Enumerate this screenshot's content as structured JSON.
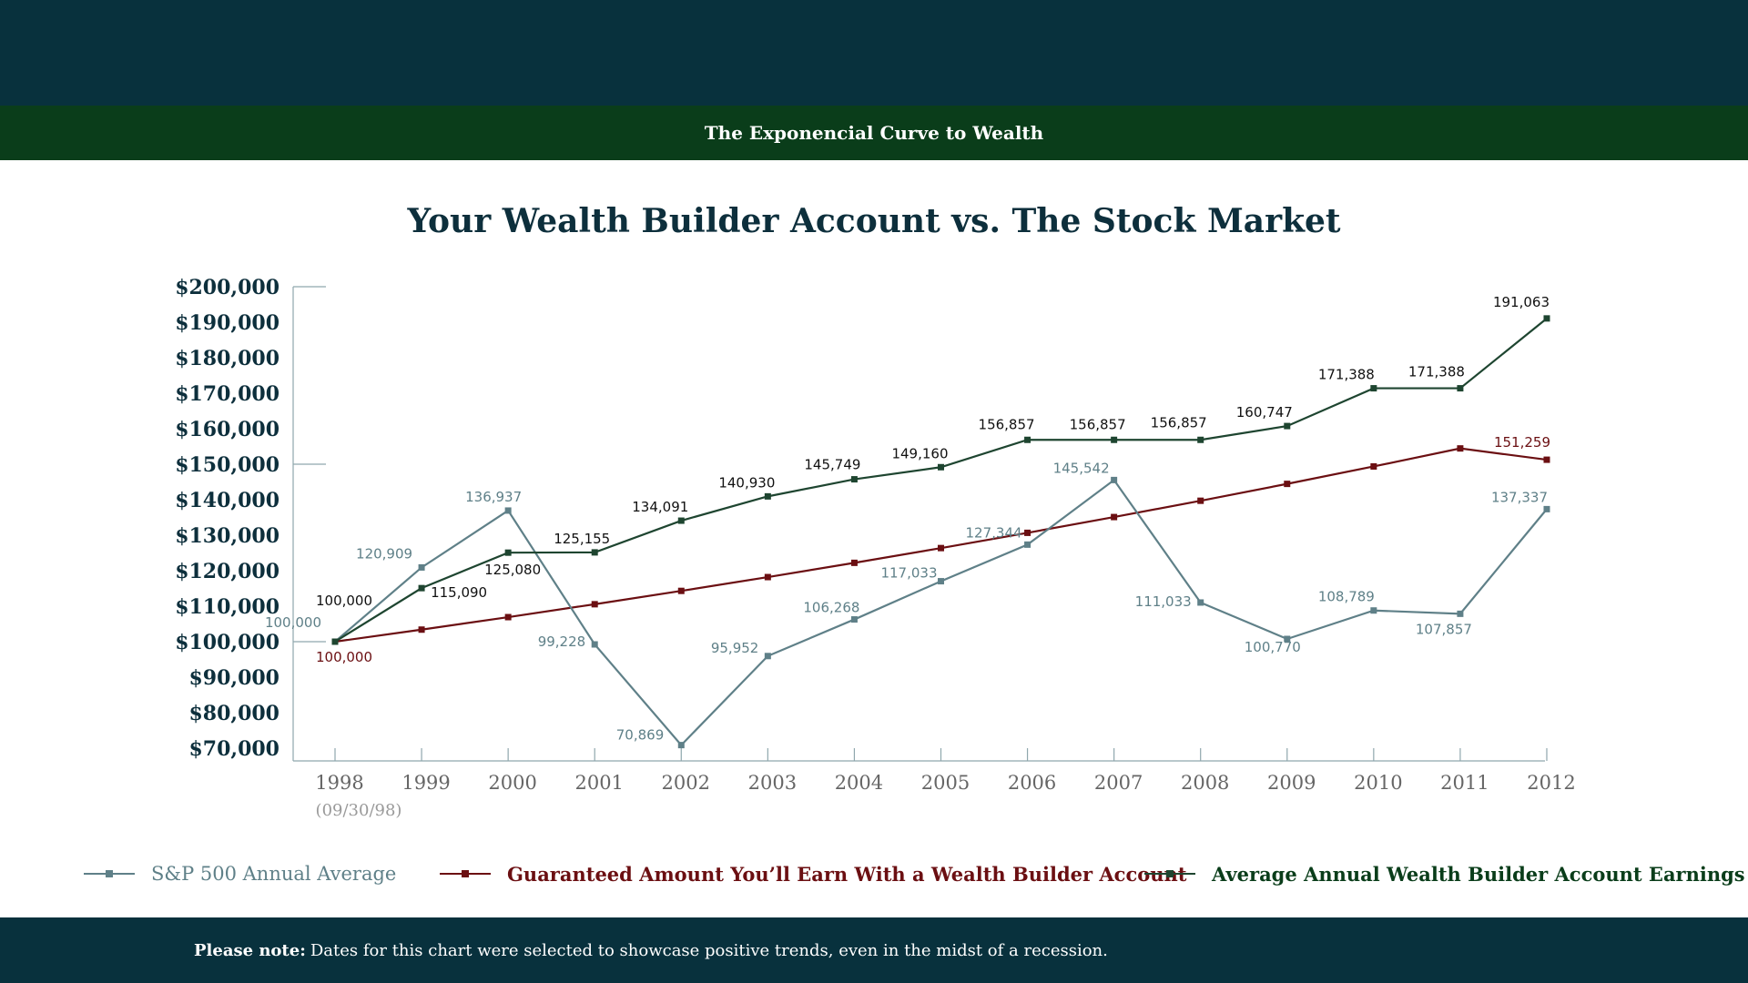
{
  "header": {
    "subtitle": "The Exponencial Curve to Wealth"
  },
  "chart_data": {
    "type": "line",
    "title": "Your Wealth Builder Account vs. The Stock Market",
    "xlabel": "",
    "ylabel": "",
    "categories": [
      "1998",
      "1999",
      "2000",
      "2001",
      "2002",
      "2003",
      "2004",
      "2005",
      "2006",
      "2007",
      "2008",
      "2009",
      "2010",
      "2011",
      "2012"
    ],
    "first_category_note": "(09/30/98)",
    "ylim": [
      70000,
      200000
    ],
    "y_ticks": [
      "$200,000",
      "$190,000",
      "$180,000",
      "$170,000",
      "$160,000",
      "$150,000",
      "$140,000",
      "$130,000",
      "$120,000",
      "$110,000",
      "$100,000",
      "$90,000",
      "$80,000",
      "$70,000"
    ],
    "grid": false,
    "legend_position": "bottom",
    "series": [
      {
        "name": "S&P 500 Annual Average",
        "color": "#5f8088",
        "values": [
          100000,
          120909,
          136937,
          99228,
          70869,
          95952,
          106268,
          117033,
          127344,
          145542,
          111033,
          100770,
          108789,
          107857,
          137337
        ],
        "labels": [
          "100,000",
          "120,909",
          "136,937",
          "99,228",
          "70,869",
          "95,952",
          "106,268",
          "117,033",
          "127,344",
          "145,542",
          "111,033",
          "100,770",
          "108,789",
          "107,857",
          "137,337"
        ]
      },
      {
        "name": "Guaranteed Amount You’ll Earn With a Wealth Builder Account",
        "color": "#6b0f12",
        "values": [
          100000,
          103400,
          106916,
          110551,
          114309,
          118196,
          122214,
          126370,
          130666,
          135109,
          139703,
          144453,
          149364,
          154442,
          151259
        ],
        "labels": [
          "100,000",
          "",
          "",
          "",
          "",
          "",
          "",
          "",
          "",
          "",
          "",
          "",
          "",
          "",
          "151,259"
        ]
      },
      {
        "name": "Average Annual Wealth Builder Account Earnings",
        "color": "#1e4530",
        "values": [
          100000,
          115090,
          125080,
          125155,
          134091,
          140930,
          145749,
          149160,
          156857,
          156857,
          156857,
          160747,
          171388,
          171388,
          191063
        ],
        "labels": [
          "100,000",
          "115,090",
          "125,080",
          "125,155",
          "134,091",
          "140,930",
          "145,749",
          "149,160",
          "156,857",
          "156,857",
          "156,857",
          "160,747",
          "171,388",
          "171,388",
          "191,063"
        ]
      }
    ]
  },
  "footer": {
    "note_label": "Please note:",
    "note_text": "Dates for this chart were selected to showcase positive trends, even in the midst of a recession."
  }
}
